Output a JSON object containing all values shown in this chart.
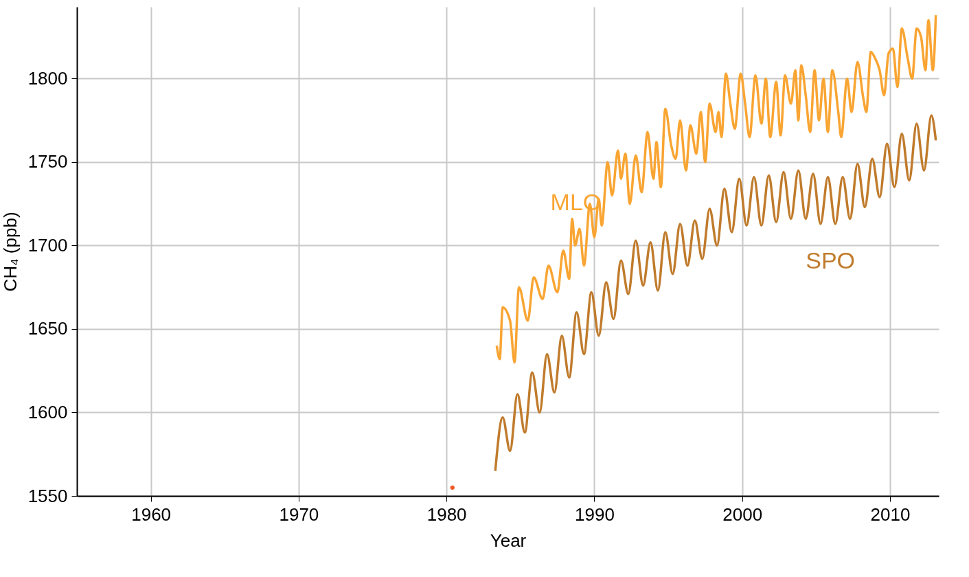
{
  "chart_data": {
    "type": "line",
    "xlabel": "Year",
    "ylabel": "CH₄ (ppb)",
    "xlim": [
      1955,
      2013.3
    ],
    "ylim": [
      1550,
      1843
    ],
    "xticks": [
      1960,
      1970,
      1980,
      1990,
      2000,
      2010
    ],
    "yticks": [
      1550,
      1600,
      1650,
      1700,
      1750,
      1800
    ],
    "grid": true,
    "legend": false,
    "marker": "none",
    "line_style": "solid",
    "series": [
      {
        "name": "MLO",
        "color": "#f9a533",
        "x": [
          1983.4,
          1983.6,
          1983.8,
          1984.3,
          1984.6,
          1984.9,
          1985.5,
          1985.9,
          1986.5,
          1986.9,
          1987.5,
          1987.9,
          1988.3,
          1988.5,
          1988.7,
          1989.0,
          1989.3,
          1989.7,
          1990.0,
          1990.3,
          1990.5,
          1990.9,
          1991.2,
          1991.6,
          1991.8,
          1992.1,
          1992.4,
          1992.8,
          1993.2,
          1993.6,
          1994.0,
          1994.2,
          1994.5,
          1994.8,
          1995.2,
          1995.5,
          1995.8,
          1996.2,
          1996.5,
          1996.9,
          1997.2,
          1997.5,
          1997.8,
          1998.2,
          1998.4,
          1998.6,
          1998.9,
          1999.2,
          1999.5,
          1999.9,
          2000.2,
          2000.5,
          2000.9,
          2001.3,
          2001.6,
          2001.9,
          2002.3,
          2002.6,
          2002.9,
          2003.3,
          2003.6,
          2003.8,
          2004.0,
          2004.3,
          2004.6,
          2004.9,
          2005.2,
          2005.5,
          2005.8,
          2006.1,
          2006.5,
          2006.7,
          2007.1,
          2007.4,
          2007.8,
          2008.2,
          2008.4,
          2008.7,
          2009.0,
          2009.3,
          2009.6,
          2009.9,
          2010.2,
          2010.5,
          2010.8,
          2011.2,
          2011.5,
          2011.8,
          2012.1,
          2012.4,
          2012.6,
          2012.9,
          2013.1
        ],
        "values": [
          1640,
          1632,
          1663,
          1655,
          1630,
          1675,
          1655,
          1681,
          1668,
          1688,
          1672,
          1697,
          1680,
          1716,
          1700,
          1710,
          1688,
          1725,
          1705,
          1728,
          1712,
          1750,
          1730,
          1757,
          1740,
          1755,
          1725,
          1754,
          1732,
          1768,
          1740,
          1762,
          1735,
          1782,
          1760,
          1752,
          1775,
          1745,
          1772,
          1755,
          1780,
          1750,
          1785,
          1768,
          1780,
          1765,
          1803,
          1785,
          1770,
          1803,
          1785,
          1765,
          1802,
          1773,
          1800,
          1765,
          1798,
          1766,
          1802,
          1785,
          1805,
          1775,
          1808,
          1790,
          1768,
          1805,
          1775,
          1800,
          1768,
          1805,
          1780,
          1765,
          1800,
          1780,
          1810,
          1788,
          1780,
          1816,
          1812,
          1805,
          1790,
          1815,
          1818,
          1795,
          1830,
          1812,
          1800,
          1830,
          1825,
          1805,
          1835,
          1805,
          1838
        ]
      },
      {
        "name": "SPO",
        "color": "#c07b2c",
        "x": [
          1983.3,
          1983.8,
          1984.3,
          1984.8,
          1985.3,
          1985.8,
          1986.3,
          1986.8,
          1987.3,
          1987.8,
          1988.3,
          1988.8,
          1989.3,
          1989.8,
          1990.3,
          1990.8,
          1991.3,
          1991.8,
          1992.3,
          1992.8,
          1993.3,
          1993.8,
          1994.3,
          1994.8,
          1995.3,
          1995.8,
          1996.3,
          1996.8,
          1997.3,
          1997.8,
          1998.3,
          1998.8,
          1999.3,
          1999.8,
          2000.3,
          2000.8,
          2001.3,
          2001.8,
          2002.3,
          2002.8,
          2003.3,
          2003.8,
          2004.3,
          2004.8,
          2005.3,
          2005.8,
          2006.3,
          2006.8,
          2007.3,
          2007.8,
          2008.3,
          2008.8,
          2009.3,
          2009.8,
          2010.3,
          2010.8,
          2011.3,
          2011.8,
          2012.3,
          2012.8,
          2013.1
        ],
        "values": [
          1565,
          1597,
          1577,
          1611,
          1588,
          1624,
          1600,
          1635,
          1612,
          1646,
          1621,
          1660,
          1635,
          1672,
          1646,
          1678,
          1656,
          1691,
          1671,
          1703,
          1676,
          1702,
          1673,
          1708,
          1683,
          1713,
          1688,
          1715,
          1692,
          1722,
          1700,
          1734,
          1708,
          1740,
          1712,
          1741,
          1712,
          1742,
          1714,
          1744,
          1716,
          1745,
          1716,
          1743,
          1713,
          1741,
          1713,
          1741,
          1716,
          1749,
          1723,
          1752,
          1729,
          1761,
          1735,
          1767,
          1739,
          1773,
          1745,
          1778,
          1763
        ]
      },
      {
        "type": "scatter",
        "color": "#f05a28",
        "x": [
          1980.4
        ],
        "values": [
          1555
        ]
      }
    ]
  }
}
